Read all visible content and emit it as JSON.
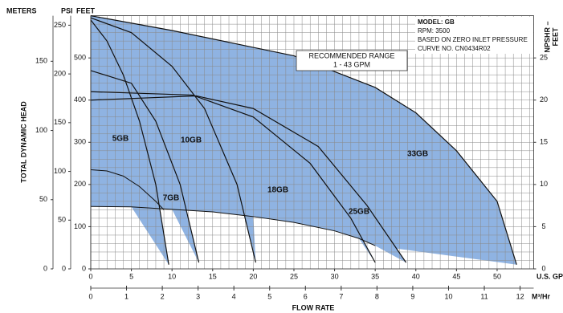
{
  "chart_data": {
    "type": "line",
    "xlabel": "FLOW RATE",
    "x_unit": "U.S. GPM",
    "x2_unit": "M³/Hr",
    "ylabel": "TOTAL DYNAMIC HEAD",
    "y_unit": "FEET",
    "psi_unit": "PSI",
    "meter_unit": "METERS",
    "y2label": [
      "NPSHR –",
      "FEET"
    ],
    "annotations": [
      "MODEL: GB",
      "RPM: 3500",
      "BASED ON ZERO INLET PRESSURE",
      "CURVE NO. CN0434R02"
    ],
    "range_box": [
      "RECOMMENDED RANGE",
      "1 - 43 GPM"
    ],
    "xlim": [
      0,
      54.5
    ],
    "xticks": [
      0,
      5,
      10,
      15,
      20,
      25,
      30,
      35,
      40,
      45,
      50
    ],
    "x2lim": [
      0,
      12.38
    ],
    "x2ticks": [
      0,
      1,
      2,
      3,
      4,
      5,
      6,
      7,
      8,
      9,
      10,
      11,
      12
    ],
    "ylim": [
      0,
      600
    ],
    "yticks": [
      0,
      100,
      200,
      300,
      400,
      500
    ],
    "psilim": [
      0,
      259.7
    ],
    "psiticks": [
      0,
      50,
      100,
      150,
      200,
      250
    ],
    "meterlim": [
      0,
      182.9
    ],
    "meterticks": [
      0,
      50,
      100,
      150
    ],
    "y2lim": [
      0,
      30
    ],
    "y2ticks": [
      0,
      5,
      10,
      15,
      20,
      25
    ],
    "grid": true,
    "minor_grid": {
      "x": 1,
      "y": 20
    },
    "fill_color": "#8fb3e2",
    "line_color": "#111111",
    "series": [
      {
        "name": "33GB",
        "x": [
          0,
          10,
          20,
          25,
          35,
          40,
          45,
          50,
          52.4
        ],
        "values": [
          600,
          565,
          525,
          505,
          430,
          370,
          280,
          160,
          10
        ]
      },
      {
        "name": "25GB",
        "x": [
          0,
          13,
          20,
          28,
          34,
          38.8
        ],
        "values": [
          400,
          410,
          380,
          290,
          150,
          15
        ]
      },
      {
        "name": "18GB",
        "x": [
          0,
          12.5,
          20,
          27,
          32,
          35
        ],
        "values": [
          420,
          412,
          360,
          250,
          120,
          15
        ]
      },
      {
        "name": "10GB",
        "x": [
          0,
          5,
          10,
          14,
          18,
          20.3
        ],
        "values": [
          595,
          560,
          480,
          380,
          200,
          15
        ]
      },
      {
        "name": "7GB",
        "x": [
          0,
          5,
          8,
          11,
          13.3
        ],
        "values": [
          470,
          440,
          350,
          200,
          15
        ]
      },
      {
        "name": "5GB",
        "x": [
          0,
          2,
          4,
          6,
          8,
          9.6
        ],
        "values": [
          590,
          540,
          460,
          350,
          200,
          10
        ]
      }
    ],
    "lower_boundary": {
      "x": [
        0,
        5,
        10,
        15,
        20,
        25,
        30,
        33,
        35
      ],
      "values": [
        148,
        147,
        141,
        135,
        124,
        110,
        90,
        72,
        55
      ]
    },
    "inner_curve": {
      "x": [
        0,
        2,
        4,
        6,
        8,
        9
      ],
      "values": [
        235,
        232,
        220,
        195,
        160,
        140
      ]
    }
  }
}
